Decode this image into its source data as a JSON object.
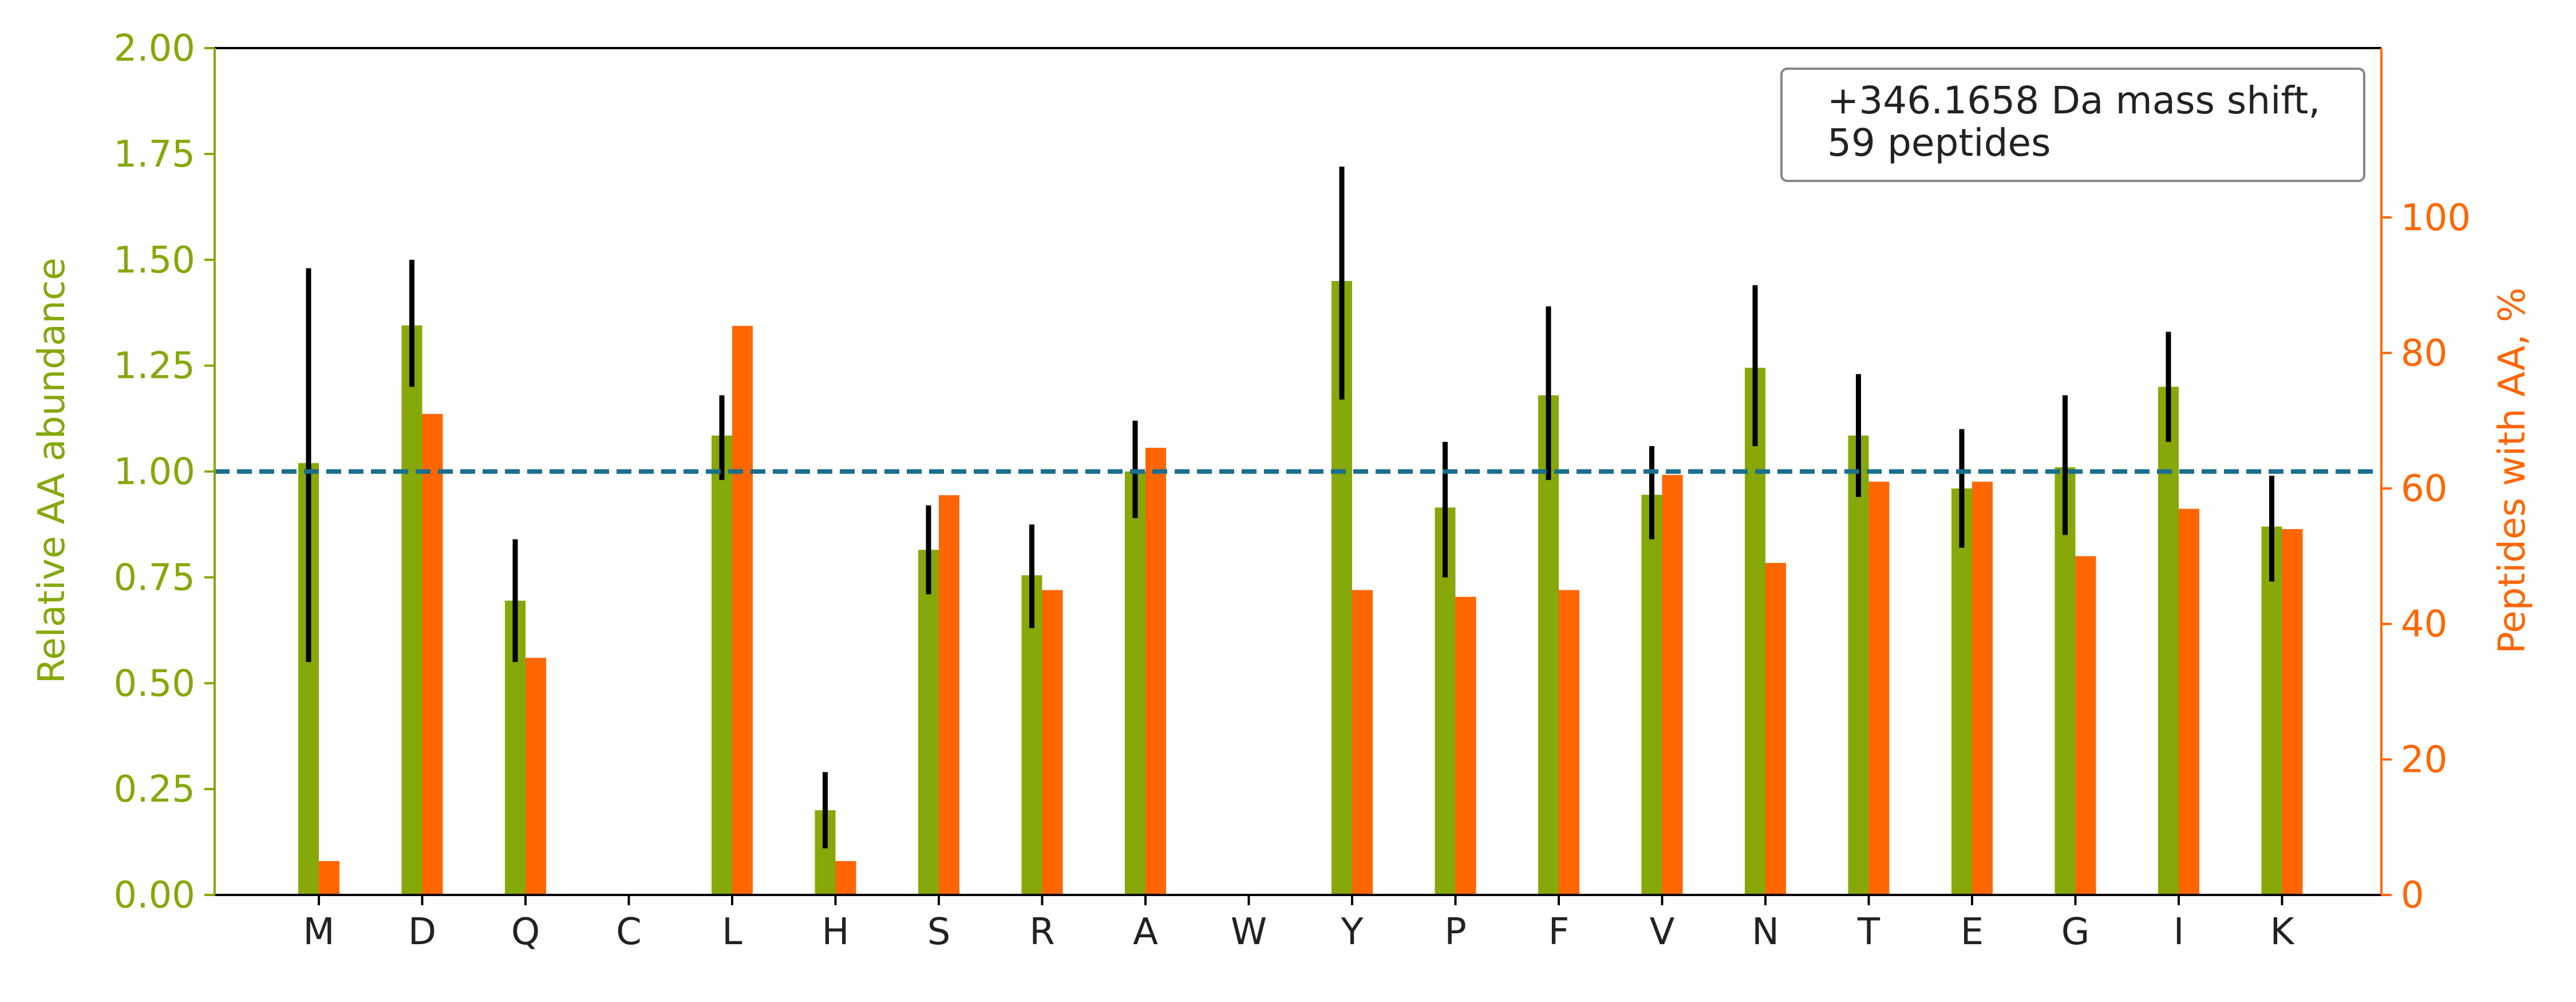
{
  "chart_data": {
    "type": "bar",
    "categories": [
      "M",
      "D",
      "Q",
      "C",
      "L",
      "H",
      "S",
      "R",
      "A",
      "W",
      "Y",
      "P",
      "F",
      "V",
      "N",
      "T",
      "E",
      "G",
      "I",
      "K"
    ],
    "series": [
      {
        "axis": "left",
        "color": "#86a809",
        "values": [
          1.02,
          1.345,
          0.695,
          0,
          1.085,
          0.2,
          0.815,
          0.755,
          1.0,
          0,
          1.45,
          0.915,
          1.18,
          0.945,
          1.245,
          1.085,
          0.96,
          1.01,
          1.2,
          0.87
        ],
        "error_low": [
          0.55,
          1.2,
          0.55,
          null,
          0.98,
          0.11,
          0.71,
          0.63,
          0.89,
          null,
          1.17,
          0.75,
          0.98,
          0.84,
          1.06,
          0.94,
          0.82,
          0.85,
          1.07,
          0.74
        ],
        "error_high": [
          1.48,
          1.5,
          0.84,
          null,
          1.18,
          0.29,
          0.92,
          0.875,
          1.12,
          null,
          1.72,
          1.07,
          1.39,
          1.06,
          1.44,
          1.23,
          1.1,
          1.18,
          1.33,
          0.99
        ]
      },
      {
        "axis": "right",
        "color": "#ff6600",
        "values": [
          5,
          71,
          35,
          0,
          84,
          5,
          59,
          45,
          66,
          0,
          45,
          44,
          45,
          62,
          49,
          61,
          61,
          50,
          57,
          54
        ]
      }
    ],
    "reference_line": {
      "y": 1.0,
      "style": "dashed",
      "color": "#1a6e8e"
    },
    "ylabel": "Relative AA abundance",
    "ylabel_right": "Peptides with AA, %",
    "ylim": [
      0,
      2.0
    ],
    "ylim_right": [
      0,
      125
    ],
    "yticks": [
      "0.00",
      "0.25",
      "0.50",
      "0.75",
      "1.00",
      "1.25",
      "1.50",
      "1.75",
      "2.00"
    ],
    "yticks_right": [
      "0",
      "20",
      "40",
      "60",
      "80",
      "100"
    ],
    "legend": {
      "line1": "+346.1658 Da mass shift,",
      "line2": "59 peptides",
      "placement": "top-right"
    },
    "grid": false,
    "colors": {
      "left_axis": "#86a809",
      "right_axis": "#ff6600",
      "bar_left": "#86a809",
      "bar_right": "#ff6600",
      "error_bar": "#000000"
    }
  }
}
